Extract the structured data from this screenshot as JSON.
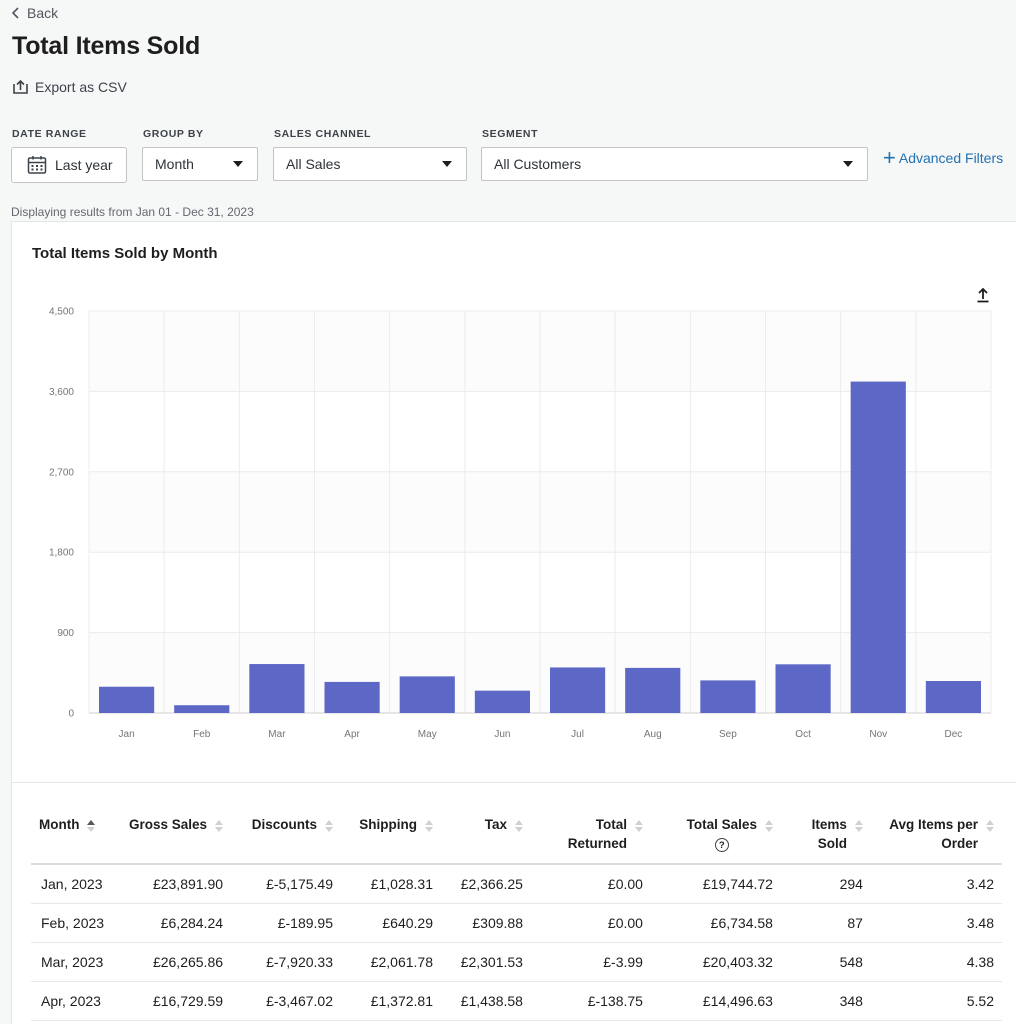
{
  "nav": {
    "back_label": "Back"
  },
  "page": {
    "title": "Total Items Sold",
    "export_label": "Export as CSV"
  },
  "filters": {
    "date_range": {
      "label": "DATE RANGE",
      "value": "Last year"
    },
    "group_by": {
      "label": "GROUP BY",
      "value": "Month"
    },
    "sales_channel": {
      "label": "SALES CHANNEL",
      "value": "All Sales"
    },
    "segment": {
      "label": "SEGMENT",
      "value": "All Customers"
    },
    "advanced_label": "Advanced Filters"
  },
  "displaying_text": "Displaying results from Jan 01 - Dec 31, 2023",
  "chart_data": {
    "type": "bar",
    "title": "Total Items Sold by Month",
    "categories": [
      "Jan",
      "Feb",
      "Mar",
      "Apr",
      "May",
      "Jun",
      "Jul",
      "Aug",
      "Sep",
      "Oct",
      "Nov",
      "Dec"
    ],
    "values": [
      294,
      87,
      548,
      348,
      410,
      250,
      510,
      505,
      365,
      545,
      3710,
      358
    ],
    "yticks": [
      "0",
      "900",
      "1,800",
      "2,700",
      "3,600",
      "4,500"
    ],
    "ylim": [
      0,
      4500
    ],
    "xlabel": "",
    "ylabel": "",
    "bar_color": "#5c67c6"
  },
  "table": {
    "columns": [
      {
        "label": "Month",
        "sub": ""
      },
      {
        "label": "Gross Sales",
        "sub": ""
      },
      {
        "label": "Discounts",
        "sub": ""
      },
      {
        "label": "Shipping",
        "sub": ""
      },
      {
        "label": "Tax",
        "sub": ""
      },
      {
        "label": "Total",
        "sub": "Returned"
      },
      {
        "label": "Total Sales",
        "sub": "?"
      },
      {
        "label": "Items",
        "sub": "Sold"
      },
      {
        "label": "Avg Items per",
        "sub": "Order"
      }
    ],
    "rows": [
      [
        "Jan, 2023",
        "£23,891.90",
        "£-5,175.49",
        "£1,028.31",
        "£2,366.25",
        "£0.00",
        "£19,744.72",
        "294",
        "3.42"
      ],
      [
        "Feb, 2023",
        "£6,284.24",
        "£-189.95",
        "£640.29",
        "£309.88",
        "£0.00",
        "£6,734.58",
        "87",
        "3.48"
      ],
      [
        "Mar, 2023",
        "£26,265.86",
        "£-7,920.33",
        "£2,061.78",
        "£2,301.53",
        "£-3.99",
        "£20,403.32",
        "548",
        "4.38"
      ],
      [
        "Apr, 2023",
        "£16,729.59",
        "£-3,467.02",
        "£1,372.81",
        "£1,438.58",
        "£-138.75",
        "£14,496.63",
        "348",
        "5.52"
      ]
    ]
  }
}
